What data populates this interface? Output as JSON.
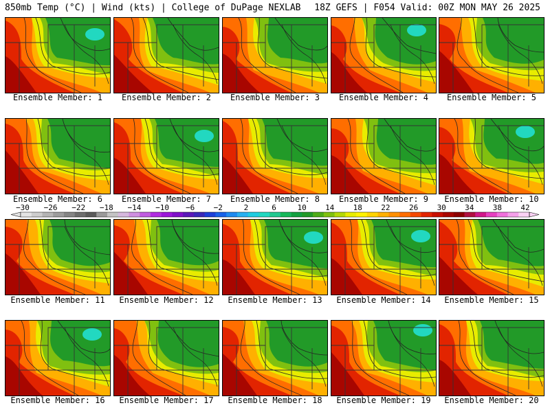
{
  "header": {
    "left_title": "850mb Temp (°C) | Wind (kts) | College of DuPage NEXLAB",
    "right_title": "18Z GEFS | F054 Valid: 00Z MON MAY 26 2025"
  },
  "caption_prefix": "Ensemble Member: ",
  "members": [
    {
      "id": 1,
      "caption": "Ensemble Member: 1"
    },
    {
      "id": 2,
      "caption": "Ensemble Member: 2"
    },
    {
      "id": 3,
      "caption": "Ensemble Member: 3"
    },
    {
      "id": 4,
      "caption": "Ensemble Member: 4"
    },
    {
      "id": 5,
      "caption": "Ensemble Member: 5"
    },
    {
      "id": 6,
      "caption": "Ensemble Member: 6"
    },
    {
      "id": 7,
      "caption": "Ensemble Member: 7"
    },
    {
      "id": 8,
      "caption": "Ensemble Member: 8"
    },
    {
      "id": 9,
      "caption": "Ensemble Member: 9"
    },
    {
      "id": 10,
      "caption": "Ensemble Member: 10"
    },
    {
      "id": 11,
      "caption": "Ensemble Member: 11"
    },
    {
      "id": 12,
      "caption": "Ensemble Member: 12"
    },
    {
      "id": 13,
      "caption": "Ensemble Member: 13"
    },
    {
      "id": 14,
      "caption": "Ensemble Member: 14"
    },
    {
      "id": 15,
      "caption": "Ensemble Member: 15"
    },
    {
      "id": 16,
      "caption": "Ensemble Member: 16"
    },
    {
      "id": 17,
      "caption": "Ensemble Member: 17"
    },
    {
      "id": 18,
      "caption": "Ensemble Member: 18"
    },
    {
      "id": 19,
      "caption": "Ensemble Member: 19"
    },
    {
      "id": 20,
      "caption": "Ensemble Member: 20"
    }
  ],
  "colorbar": {
    "unit": "°C",
    "labels": [
      "-30",
      "-26",
      "-22",
      "-18",
      "-14",
      "-10",
      "-6",
      "-2",
      "2",
      "6",
      "10",
      "14",
      "18",
      "22",
      "26",
      "30",
      "34",
      "38",
      "42"
    ],
    "colors": [
      "#e4e4e4",
      "#cdcdcd",
      "#b4b4b4",
      "#9c9c9c",
      "#858585",
      "#6d6d6d",
      "#5a5a5a",
      "#9a9a9a",
      "#c4c4c4",
      "#d6b8de",
      "#cf8fe0",
      "#c05ce0",
      "#b02ce0",
      "#9a16d8",
      "#7f10c8",
      "#5a18b8",
      "#3a28b8",
      "#1c3fd8",
      "#1862e8",
      "#1e8af0",
      "#28b0f0",
      "#20cce0",
      "#22d8c0",
      "#20c890",
      "#16b85a",
      "#12a040",
      "#229a28",
      "#4eac18",
      "#80c010",
      "#b4d808",
      "#e8ec00",
      "#fff200",
      "#ffd400",
      "#ffb000",
      "#ff9000",
      "#ff6e00",
      "#f44800",
      "#e22400",
      "#c80e00",
      "#a80600",
      "#8c0000",
      "#b01040",
      "#d0188a",
      "#e640c0",
      "#f070dc",
      "#f4a0ea",
      "#fad2f4"
    ]
  },
  "map": {
    "field": "850mb Temp",
    "wind_units": "kts",
    "colors": {
      "very_hot": "#a80600",
      "hot": "#e22400",
      "warm": "#ff6e00",
      "mild": "#ffb000",
      "yellow": "#e8ec00",
      "yellowgreen": "#80c010",
      "green": "#229a28",
      "cool": "#22d8c0"
    }
  }
}
